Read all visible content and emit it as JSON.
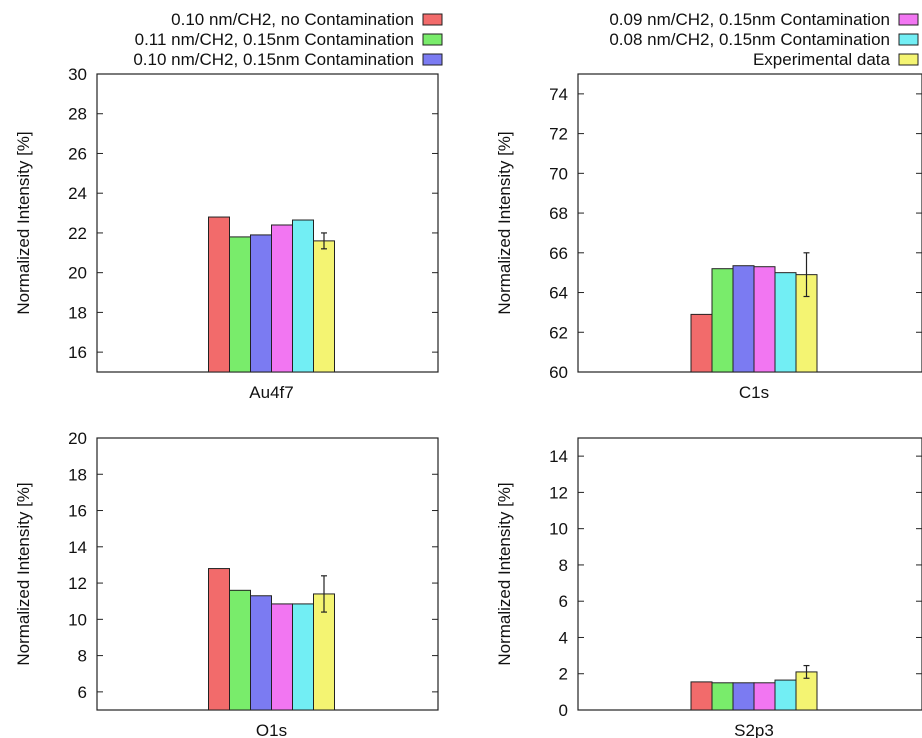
{
  "legend": {
    "left": [
      {
        "label": "0.10 nm/CH2, no Contamination",
        "color": "#f26b6b"
      },
      {
        "label": "0.11 nm/CH2, 0.15nm Contamination",
        "color": "#79ec6b"
      },
      {
        "label": "0.10 nm/CH2, 0.15nm Contamination",
        "color": "#7b7bf2"
      }
    ],
    "right": [
      {
        "label": "0.09 nm/CH2, 0.15nm Contamination",
        "color": "#f276f2"
      },
      {
        "label": "0.08 nm/CH2, 0.15nm Contamination",
        "color": "#72eef4"
      },
      {
        "label": "Experimental data",
        "color": "#f4f472"
      }
    ]
  },
  "chart_data": [
    {
      "type": "bar",
      "title": "",
      "xlabel": "Au4f7",
      "ylabel": "Normalized Intensity [%]",
      "categories": [
        "Au4f7"
      ],
      "ylim": [
        15,
        30
      ],
      "yticks": [
        16,
        18,
        20,
        22,
        24,
        26,
        28,
        30
      ],
      "series": [
        {
          "name": "0.10 nm/CH2, no Contamination",
          "values": [
            22.8
          ]
        },
        {
          "name": "0.11 nm/CH2, 0.15nm Contamination",
          "values": [
            21.8
          ]
        },
        {
          "name": "0.10 nm/CH2, 0.15nm Contamination",
          "values": [
            21.9
          ]
        },
        {
          "name": "0.09 nm/CH2, 0.15nm Contamination",
          "values": [
            22.4
          ]
        },
        {
          "name": "0.08 nm/CH2, 0.15nm Contamination",
          "values": [
            22.65
          ]
        },
        {
          "name": "Experimental data",
          "values": [
            21.6
          ],
          "error": [
            0.4
          ]
        }
      ]
    },
    {
      "type": "bar",
      "title": "",
      "xlabel": "C1s",
      "ylabel": "Normalized Intensity [%]",
      "categories": [
        "C1s"
      ],
      "ylim": [
        60,
        75
      ],
      "yticks": [
        60,
        62,
        64,
        66,
        68,
        70,
        72,
        74
      ],
      "series": [
        {
          "name": "0.10 nm/CH2, no Contamination",
          "values": [
            62.9
          ]
        },
        {
          "name": "0.11 nm/CH2, 0.15nm Contamination",
          "values": [
            65.2
          ]
        },
        {
          "name": "0.10 nm/CH2, 0.15nm Contamination",
          "values": [
            65.35
          ]
        },
        {
          "name": "0.09 nm/CH2, 0.15nm Contamination",
          "values": [
            65.3
          ]
        },
        {
          "name": "0.08 nm/CH2, 0.15nm Contamination",
          "values": [
            65.0
          ]
        },
        {
          "name": "Experimental data",
          "values": [
            64.9
          ],
          "error": [
            1.1
          ]
        }
      ]
    },
    {
      "type": "bar",
      "title": "",
      "xlabel": "O1s",
      "ylabel": "Normalized Intensity [%]",
      "categories": [
        "O1s"
      ],
      "ylim": [
        5,
        20
      ],
      "yticks": [
        6,
        8,
        10,
        12,
        14,
        16,
        18,
        20
      ],
      "series": [
        {
          "name": "0.10 nm/CH2, no Contamination",
          "values": [
            12.8
          ]
        },
        {
          "name": "0.11 nm/CH2, 0.15nm Contamination",
          "values": [
            11.6
          ]
        },
        {
          "name": "0.10 nm/CH2, 0.15nm Contamination",
          "values": [
            11.3
          ]
        },
        {
          "name": "0.09 nm/CH2, 0.15nm Contamination",
          "values": [
            10.85
          ]
        },
        {
          "name": "0.08 nm/CH2, 0.15nm Contamination",
          "values": [
            10.85
          ]
        },
        {
          "name": "Experimental data",
          "values": [
            11.4
          ],
          "error": [
            1.0
          ]
        }
      ]
    },
    {
      "type": "bar",
      "title": "",
      "xlabel": "S2p3",
      "ylabel": "Normalized Intensity [%]",
      "categories": [
        "S2p3"
      ],
      "ylim": [
        0,
        15
      ],
      "yticks": [
        0,
        2,
        4,
        6,
        8,
        10,
        12,
        14
      ],
      "series": [
        {
          "name": "0.10 nm/CH2, no Contamination",
          "values": [
            1.55
          ]
        },
        {
          "name": "0.11 nm/CH2, 0.15nm Contamination",
          "values": [
            1.5
          ]
        },
        {
          "name": "0.10 nm/CH2, 0.15nm Contamination",
          "values": [
            1.5
          ]
        },
        {
          "name": "0.09 nm/CH2, 0.15nm Contamination",
          "values": [
            1.5
          ]
        },
        {
          "name": "0.08 nm/CH2, 0.15nm Contamination",
          "values": [
            1.65
          ]
        },
        {
          "name": "Experimental data",
          "values": [
            2.1
          ],
          "error": [
            0.35
          ]
        }
      ]
    }
  ]
}
